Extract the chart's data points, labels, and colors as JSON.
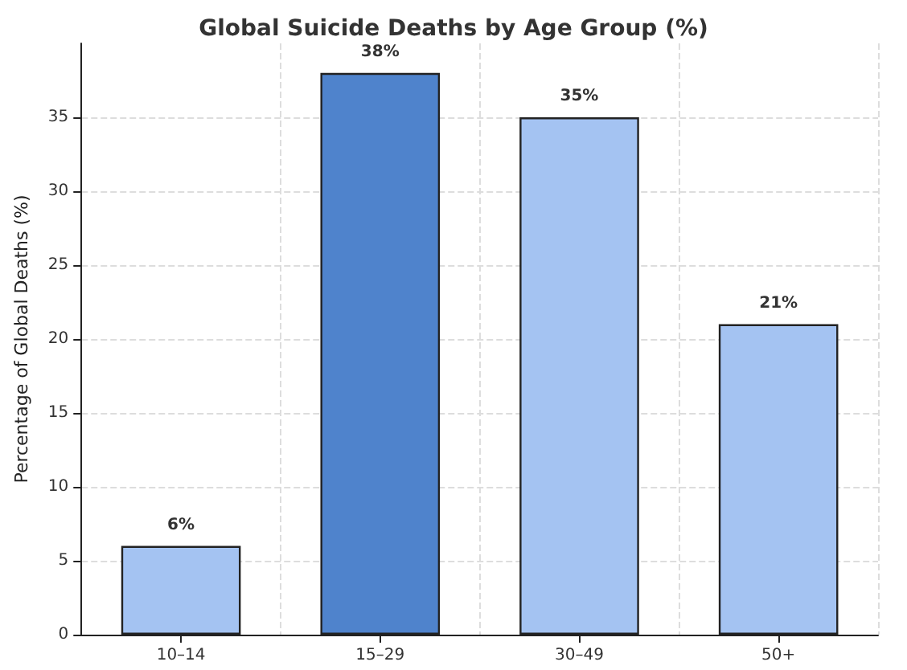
{
  "chart_data": {
    "type": "bar",
    "title": "Global Suicide Deaths by Age Group (%)",
    "ylabel": "Percentage of Global Deaths (%)",
    "categories": [
      "10–14",
      "15–29",
      "30–49",
      "50+"
    ],
    "values": [
      6,
      38,
      35,
      21
    ],
    "colors": [
      "#a4c3f2",
      "#4f83cc",
      "#a4c3f2",
      "#a4c3f2"
    ],
    "value_labels": [
      "6%",
      "38%",
      "35%",
      "21%"
    ],
    "ylim": [
      0,
      40
    ],
    "yticks": [
      0,
      5,
      10,
      15,
      20,
      25,
      30,
      35
    ],
    "grid": true
  }
}
